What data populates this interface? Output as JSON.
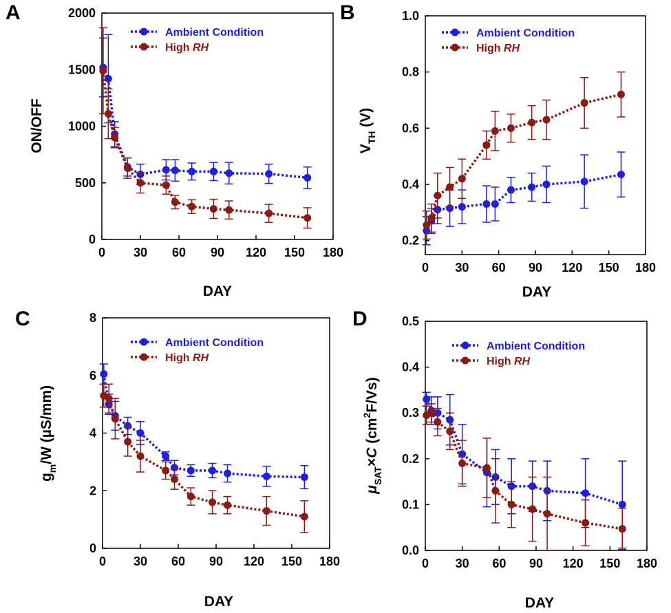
{
  "colors": {
    "ambient": "#1f1fe0",
    "high_rh": "#8b1a12",
    "axis": "#000000"
  },
  "legend": {
    "ambient_label": "Ambient Condition",
    "high_label_main": "High ",
    "high_label_italic": "RH"
  },
  "chart_data": [
    {
      "panel": "A",
      "type": "line",
      "xlabel": "DAY",
      "ylabel": "ON/OFF",
      "xlim": [
        0,
        180
      ],
      "ylim": [
        0,
        2000
      ],
      "xticks": [
        "0",
        "30",
        "60",
        "90",
        "120",
        "150",
        "180"
      ],
      "yticks": [
        "0",
        "500",
        "1000",
        "1500",
        "2000"
      ],
      "legend_position": "top-right",
      "series": [
        {
          "name": "Ambient Condition",
          "x": [
            1,
            5,
            10,
            20,
            30,
            50,
            57,
            70,
            87,
            99,
            130,
            160
          ],
          "y": [
            1520,
            1420,
            930,
            640,
            575,
            615,
            610,
            600,
            600,
            585,
            580,
            545
          ],
          "err": [
            260,
            390,
            110,
            80,
            90,
            90,
            95,
            75,
            80,
            95,
            85,
            95
          ]
        },
        {
          "name": "High RH",
          "x": [
            1,
            5,
            10,
            20,
            30,
            50,
            57,
            70,
            87,
            99,
            130,
            160
          ],
          "y": [
            1490,
            1110,
            900,
            630,
            500,
            480,
            330,
            290,
            270,
            260,
            230,
            190
          ],
          "err": [
            380,
            220,
            90,
            90,
            90,
            80,
            60,
            60,
            85,
            80,
            80,
            90
          ]
        }
      ]
    },
    {
      "panel": "B",
      "type": "line",
      "xlabel": "DAY",
      "ylabel_main": "V",
      "ylabel_sub": "TH",
      "ylabel_tail": " (V)",
      "xlim": [
        0,
        180
      ],
      "ylim": [
        0.15,
        1.0
      ],
      "xticks": [
        "0",
        "30",
        "60",
        "90",
        "120",
        "150",
        "180"
      ],
      "yticks": [
        "0.2",
        "0.4",
        "0.6",
        "0.8",
        "1.0"
      ],
      "legend_position": "top-right",
      "series": [
        {
          "name": "Ambient Condition",
          "x": [
            1,
            5,
            10,
            20,
            30,
            50,
            57,
            70,
            87,
            99,
            130,
            160
          ],
          "y": [
            0.235,
            0.27,
            0.31,
            0.315,
            0.32,
            0.33,
            0.33,
            0.38,
            0.39,
            0.4,
            0.41,
            0.435
          ],
          "err": [
            0.05,
            0.045,
            0.05,
            0.065,
            0.06,
            0.065,
            0.06,
            0.045,
            0.05,
            0.065,
            0.095,
            0.08
          ]
        },
        {
          "name": "High RH",
          "x": [
            1,
            5,
            10,
            20,
            30,
            50,
            57,
            70,
            87,
            99,
            130,
            160
          ],
          "y": [
            0.255,
            0.28,
            0.36,
            0.39,
            0.42,
            0.54,
            0.59,
            0.6,
            0.62,
            0.63,
            0.69,
            0.72
          ],
          "err": [
            0.05,
            0.05,
            0.08,
            0.07,
            0.07,
            0.05,
            0.07,
            0.05,
            0.06,
            0.07,
            0.09,
            0.08
          ]
        }
      ]
    },
    {
      "panel": "C",
      "type": "line",
      "xlabel": "DAY",
      "ylabel_main": "g",
      "ylabel_sub": "m",
      "ylabel_tail": "/W (µS/mm)",
      "xlim": [
        0,
        180
      ],
      "ylim": [
        0,
        8
      ],
      "xticks": [
        "0",
        "30",
        "60",
        "90",
        "120",
        "150",
        "180"
      ],
      "yticks": [
        "0",
        "2",
        "4",
        "6",
        "8"
      ],
      "legend_position": "top-right",
      "series": [
        {
          "name": "Ambient Condition",
          "x": [
            1,
            5,
            10,
            20,
            30,
            50,
            57,
            70,
            87,
            99,
            130,
            160
          ],
          "y": [
            6.05,
            5.0,
            4.6,
            4.25,
            4.0,
            3.2,
            2.8,
            2.7,
            2.7,
            2.6,
            2.5,
            2.47
          ],
          "err": [
            0.35,
            0.35,
            0.5,
            0.3,
            0.4,
            0.15,
            0.25,
            0.2,
            0.25,
            0.3,
            0.35,
            0.4
          ]
        },
        {
          "name": "High RH",
          "x": [
            1,
            5,
            10,
            20,
            30,
            50,
            57,
            70,
            87,
            99,
            130,
            160
          ],
          "y": [
            5.3,
            5.2,
            4.5,
            3.7,
            3.2,
            2.7,
            2.4,
            1.8,
            1.6,
            1.5,
            1.3,
            1.1
          ],
          "err": [
            0.4,
            0.5,
            0.7,
            0.5,
            0.55,
            0.3,
            0.35,
            0.3,
            0.4,
            0.3,
            0.5,
            0.55
          ]
        }
      ]
    },
    {
      "panel": "D",
      "type": "line",
      "xlabel": "DAY",
      "ylabel_mu": "μ",
      "ylabel_sub": "SAT",
      "ylabel_times": "×",
      "ylabel_c": "C",
      "ylabel_open": " (cm",
      "ylabel_sup": "2",
      "ylabel_close": "F/Vs)",
      "xlim": [
        0,
        180
      ],
      "ylim": [
        0,
        0.5
      ],
      "xticks": [
        "0",
        "30",
        "60",
        "90",
        "120",
        "150",
        "180"
      ],
      "yticks": [
        "0.0",
        "0.1",
        "0.2",
        "0.3",
        "0.4",
        "0.5"
      ],
      "legend_position": "top-right",
      "series": [
        {
          "name": "Ambient Condition",
          "x": [
            1,
            5,
            10,
            20,
            30,
            50,
            57,
            70,
            87,
            99,
            130,
            160
          ],
          "y": [
            0.33,
            0.305,
            0.3,
            0.285,
            0.21,
            0.17,
            0.16,
            0.14,
            0.14,
            0.13,
            0.125,
            0.1
          ],
          "err": [
            0.015,
            0.03,
            0.035,
            0.055,
            0.065,
            0.075,
            0.06,
            0.06,
            0.055,
            0.065,
            0.075,
            0.095
          ]
        },
        {
          "name": "High RH",
          "x": [
            1,
            5,
            10,
            20,
            30,
            50,
            57,
            70,
            87,
            99,
            130,
            160
          ],
          "y": [
            0.295,
            0.3,
            0.28,
            0.26,
            0.19,
            0.18,
            0.13,
            0.1,
            0.09,
            0.08,
            0.06,
            0.047
          ],
          "err": [
            0.02,
            0.02,
            0.03,
            0.04,
            0.05,
            0.065,
            0.07,
            0.05,
            0.07,
            0.08,
            0.05,
            0.045
          ]
        }
      ]
    }
  ]
}
